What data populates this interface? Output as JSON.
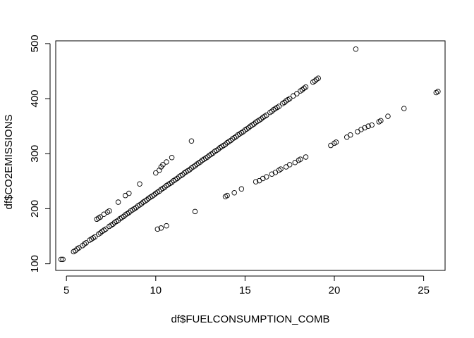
{
  "chart_data": {
    "type": "scatter",
    "xlabel": "df$FUELCONSUMPTION_COMB",
    "ylabel": "df$CO2EMISSIONS",
    "xlim": [
      4.4,
      26.2
    ],
    "ylim": [
      88,
      505
    ],
    "xticks": [
      5,
      10,
      15,
      20,
      25
    ],
    "yticks": [
      100,
      200,
      300,
      400,
      500
    ],
    "grid": false,
    "marker": "open-circle",
    "marker_color": "#000000",
    "series": [
      {
        "points": [
          [
            4.7,
            108
          ],
          [
            4.8,
            108
          ],
          [
            5.4,
            122
          ],
          [
            5.5,
            124
          ],
          [
            5.6,
            127
          ],
          [
            5.7,
            129
          ],
          [
            5.9,
            133
          ],
          [
            6.0,
            136
          ],
          [
            6.1,
            138
          ],
          [
            6.3,
            143
          ],
          [
            6.4,
            145
          ],
          [
            6.5,
            147
          ],
          [
            6.6,
            149
          ],
          [
            6.8,
            154
          ],
          [
            6.9,
            156
          ],
          [
            7.0,
            159
          ],
          [
            7.1,
            161
          ],
          [
            7.2,
            163
          ],
          [
            7.4,
            168
          ],
          [
            7.5,
            170
          ],
          [
            7.6,
            172
          ],
          [
            7.7,
            175
          ],
          [
            7.8,
            177
          ],
          [
            7.9,
            179
          ],
          [
            8.0,
            182
          ],
          [
            8.1,
            184
          ],
          [
            8.2,
            186
          ],
          [
            8.3,
            189
          ],
          [
            8.4,
            191
          ],
          [
            8.5,
            193
          ],
          [
            8.6,
            196
          ],
          [
            8.7,
            198
          ],
          [
            8.8,
            200
          ],
          [
            8.9,
            202
          ],
          [
            9.0,
            205
          ],
          [
            9.1,
            207
          ],
          [
            9.2,
            209
          ],
          [
            9.3,
            212
          ],
          [
            9.4,
            214
          ],
          [
            9.5,
            216
          ],
          [
            9.6,
            219
          ],
          [
            9.7,
            221
          ],
          [
            9.8,
            223
          ],
          [
            9.9,
            225
          ],
          [
            10.0,
            228
          ],
          [
            10.1,
            230
          ],
          [
            10.2,
            232
          ],
          [
            10.3,
            235
          ],
          [
            10.4,
            237
          ],
          [
            10.5,
            239
          ],
          [
            10.6,
            242
          ],
          [
            10.7,
            244
          ],
          [
            10.8,
            246
          ],
          [
            10.9,
            248
          ],
          [
            11.0,
            251
          ],
          [
            11.1,
            253
          ],
          [
            11.2,
            255
          ],
          [
            11.3,
            258
          ],
          [
            11.4,
            260
          ],
          [
            11.5,
            262
          ],
          [
            11.6,
            265
          ],
          [
            11.7,
            267
          ],
          [
            11.8,
            269
          ],
          [
            11.9,
            271
          ],
          [
            12.0,
            274
          ],
          [
            12.1,
            276
          ],
          [
            12.2,
            278
          ],
          [
            12.3,
            281
          ],
          [
            12.4,
            283
          ],
          [
            12.5,
            285
          ],
          [
            12.6,
            288
          ],
          [
            12.7,
            290
          ],
          [
            12.8,
            292
          ],
          [
            12.9,
            294
          ],
          [
            13.0,
            297
          ],
          [
            13.1,
            299
          ],
          [
            13.2,
            301
          ],
          [
            13.3,
            304
          ],
          [
            13.4,
            306
          ],
          [
            13.5,
            308
          ],
          [
            13.6,
            311
          ],
          [
            13.7,
            313
          ],
          [
            13.8,
            315
          ],
          [
            13.9,
            317
          ],
          [
            14.0,
            320
          ],
          [
            14.1,
            322
          ],
          [
            14.2,
            324
          ],
          [
            14.3,
            327
          ],
          [
            14.4,
            329
          ],
          [
            14.5,
            331
          ],
          [
            14.6,
            334
          ],
          [
            14.7,
            336
          ],
          [
            14.8,
            338
          ],
          [
            14.9,
            340
          ],
          [
            15.0,
            343
          ],
          [
            15.1,
            345
          ],
          [
            15.2,
            347
          ],
          [
            15.3,
            350
          ],
          [
            15.4,
            352
          ],
          [
            15.5,
            354
          ],
          [
            15.6,
            357
          ],
          [
            15.7,
            359
          ],
          [
            15.8,
            361
          ],
          [
            15.9,
            363
          ],
          [
            16.0,
            366
          ],
          [
            16.1,
            368
          ],
          [
            16.2,
            370
          ],
          [
            16.4,
            375
          ],
          [
            16.5,
            377
          ],
          [
            16.6,
            380
          ],
          [
            16.7,
            382
          ],
          [
            16.8,
            384
          ],
          [
            16.9,
            386
          ],
          [
            17.1,
            391
          ],
          [
            17.2,
            393
          ],
          [
            17.3,
            396
          ],
          [
            17.4,
            398
          ],
          [
            17.5,
            400
          ],
          [
            17.7,
            405
          ],
          [
            17.9,
            409
          ],
          [
            18.1,
            414
          ],
          [
            18.2,
            416
          ],
          [
            18.3,
            419
          ],
          [
            18.4,
            421
          ],
          [
            18.8,
            430
          ],
          [
            18.9,
            432
          ],
          [
            19.0,
            435
          ],
          [
            19.1,
            437
          ],
          [
            6.7,
            181
          ],
          [
            6.8,
            183
          ],
          [
            6.9,
            185
          ],
          [
            7.1,
            190
          ],
          [
            7.3,
            194
          ],
          [
            7.4,
            196
          ],
          [
            7.9,
            212
          ],
          [
            8.3,
            224
          ],
          [
            8.5,
            228
          ],
          [
            9.1,
            245
          ],
          [
            10.0,
            265
          ],
          [
            10.2,
            270
          ],
          [
            10.3,
            276
          ],
          [
            10.4,
            280
          ],
          [
            10.6,
            285
          ],
          [
            10.9,
            293
          ],
          [
            12.0,
            323
          ],
          [
            10.1,
            163
          ],
          [
            10.3,
            165
          ],
          [
            10.6,
            169
          ],
          [
            12.2,
            195
          ],
          [
            13.9,
            222
          ],
          [
            14.0,
            224
          ],
          [
            14.4,
            229
          ],
          [
            14.8,
            236
          ],
          [
            15.6,
            249
          ],
          [
            15.8,
            251
          ],
          [
            16.0,
            255
          ],
          [
            16.2,
            258
          ],
          [
            16.5,
            263
          ],
          [
            16.7,
            266
          ],
          [
            16.9,
            270
          ],
          [
            17.0,
            272
          ],
          [
            17.3,
            276
          ],
          [
            17.5,
            280
          ],
          [
            17.8,
            284
          ],
          [
            18.0,
            288
          ],
          [
            18.1,
            290
          ],
          [
            18.4,
            294
          ],
          [
            19.8,
            315
          ],
          [
            20.0,
            319
          ],
          [
            20.1,
            321
          ],
          [
            20.7,
            330
          ],
          [
            20.9,
            334
          ],
          [
            21.3,
            340
          ],
          [
            21.5,
            344
          ],
          [
            21.7,
            347
          ],
          [
            21.9,
            350
          ],
          [
            22.1,
            352
          ],
          [
            22.5,
            358
          ],
          [
            22.6,
            360
          ],
          [
            23.0,
            368
          ],
          [
            23.9,
            382
          ],
          [
            25.7,
            411
          ],
          [
            25.8,
            413
          ],
          [
            21.2,
            490
          ]
        ]
      }
    ]
  }
}
